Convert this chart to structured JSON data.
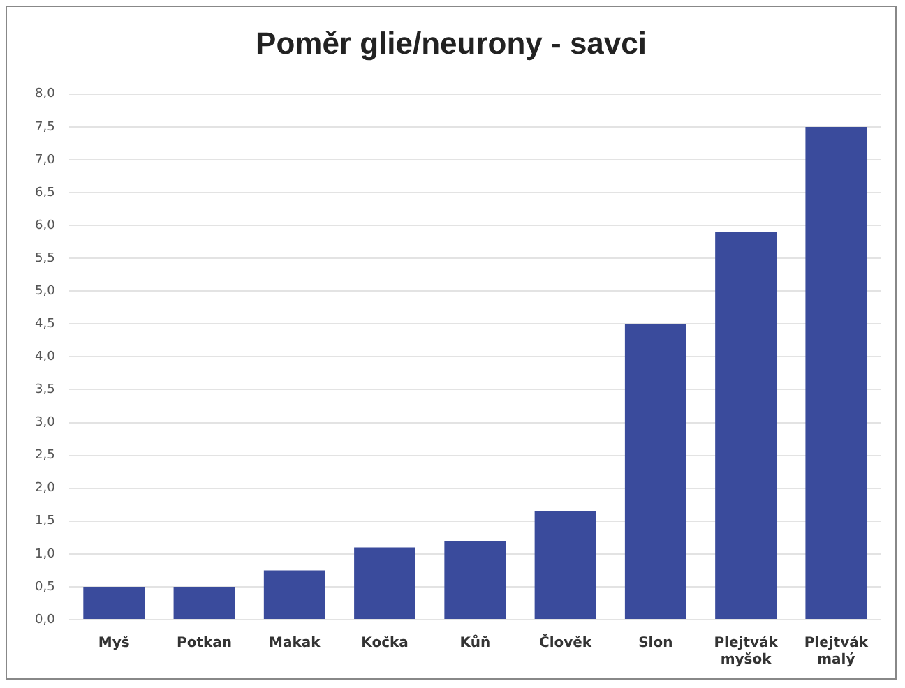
{
  "chart_data": {
    "type": "bar",
    "title": "Poměr glie/neurony - savci",
    "categories": [
      "Myš",
      "Potkan",
      "Makak",
      "Kočka",
      "Kůň",
      "Člověk",
      "Slon",
      "Plejtvák myšok",
      "Plejtvák malý"
    ],
    "values": [
      0.5,
      0.5,
      0.75,
      1.1,
      1.2,
      1.65,
      4.5,
      5.9,
      7.5
    ],
    "color": "#3a4b9c",
    "ylim": [
      0,
      8
    ],
    "yticks": [
      {
        "value": 0,
        "label": "0,0"
      },
      {
        "value": 0.5,
        "label": "0,5"
      },
      {
        "value": 1,
        "label": "1,0"
      },
      {
        "value": 1.5,
        "label": "1,5"
      },
      {
        "value": 2,
        "label": "2,0"
      },
      {
        "value": 2.5,
        "label": "2,5"
      },
      {
        "value": 3,
        "label": "3,0"
      },
      {
        "value": 3.5,
        "label": "3,5"
      },
      {
        "value": 4,
        "label": "4,0"
      },
      {
        "value": 4.5,
        "label": "4,5"
      },
      {
        "value": 5,
        "label": "5,0"
      },
      {
        "value": 5.5,
        "label": "5,5"
      },
      {
        "value": 6,
        "label": "6,0"
      },
      {
        "value": 6.5,
        "label": "6,5"
      },
      {
        "value": 7,
        "label": "7,0"
      },
      {
        "value": 7.5,
        "label": "7,5"
      },
      {
        "value": 8,
        "label": "8,0"
      }
    ],
    "grid": "y"
  }
}
